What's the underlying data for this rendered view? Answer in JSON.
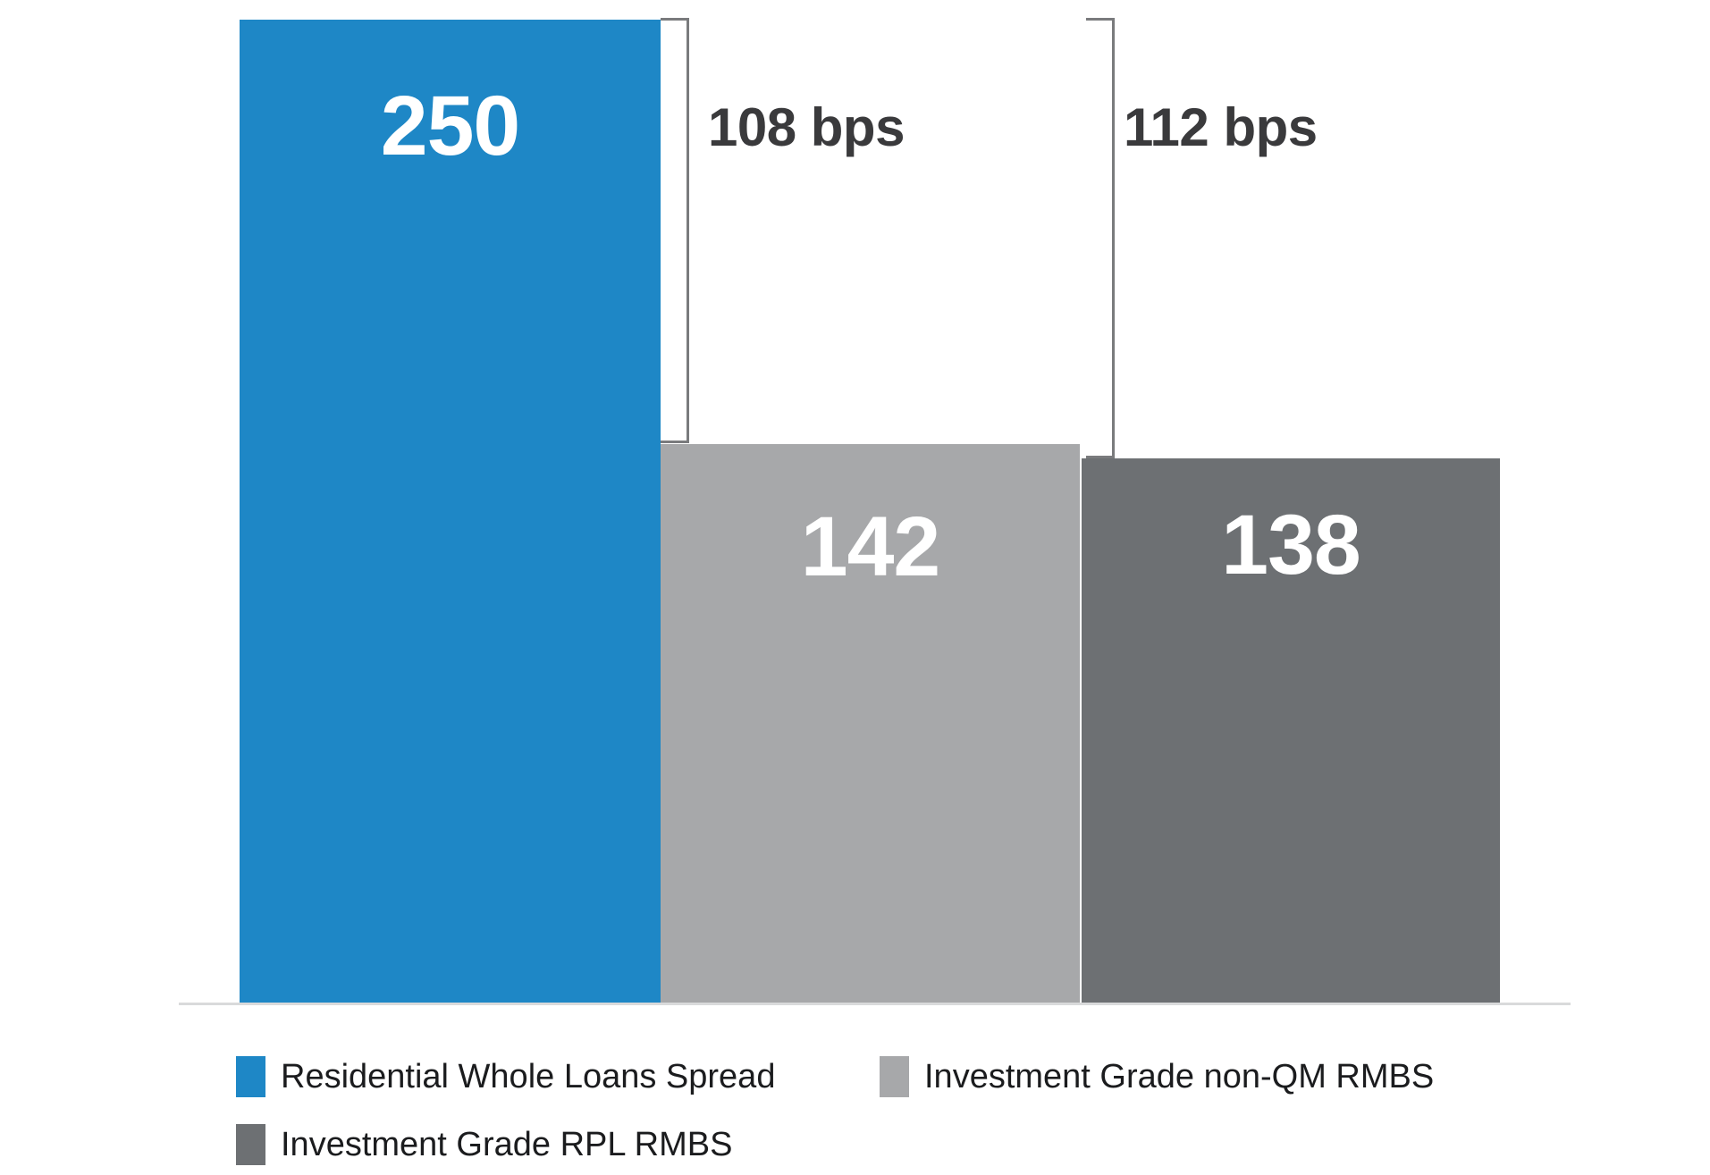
{
  "chart_data": {
    "type": "bar",
    "categories": [
      "Residential Whole Loans Spread",
      "Investment Grade non-QM RMBS",
      "Investment Grade RPL RMBS"
    ],
    "values": [
      250,
      142,
      138
    ],
    "value_labels": [
      "250",
      "142",
      "138"
    ],
    "value_unit": "bps",
    "bar_colors": [
      "#1e87c6",
      "#a7a8aa",
      "#6d7073"
    ],
    "title": "",
    "xlabel": "",
    "ylabel": "",
    "ylim": [
      0,
      250
    ],
    "grid": false,
    "legend_position": "bottom-left",
    "annotations": [
      {
        "label": "108 bps",
        "value": 108,
        "from": "Residential Whole Loans Spread",
        "to": "Investment Grade non-QM RMBS"
      },
      {
        "label": "112 bps",
        "value": 112,
        "from": "Residential Whole Loans Spread",
        "to": "Investment Grade RPL RMBS"
      }
    ]
  },
  "legend": {
    "items": [
      {
        "label": "Residential Whole Loans Spread",
        "color": "#1e87c6"
      },
      {
        "label": "Investment Grade non-QM RMBS",
        "color": "#a7a8aa"
      },
      {
        "label": "Investment Grade RPL RMBS",
        "color": "#6d7073"
      }
    ]
  },
  "axis": {
    "baseline_color": "#d9dadb",
    "bracket_line_color": "#7a7b7d",
    "annotation_text_color": "#3a3a3c"
  }
}
